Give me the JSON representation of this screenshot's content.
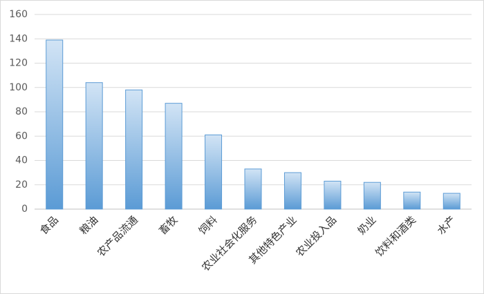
{
  "chart_data": {
    "type": "bar",
    "categories": [
      "食品",
      "粮油",
      "农产品流通",
      "畜牧",
      "饲料",
      "农业社会化服务",
      "其他特色产业",
      "农业投入品",
      "奶业",
      "饮料和酒类",
      "水产"
    ],
    "values": [
      139,
      104,
      98,
      87,
      61,
      33,
      30,
      23,
      22,
      14,
      13
    ],
    "color": "#5b9bd5",
    "ylim": [
      0,
      160
    ],
    "yticks": [
      0,
      20,
      40,
      60,
      80,
      100,
      120,
      140,
      160
    ],
    "grid": true
  }
}
